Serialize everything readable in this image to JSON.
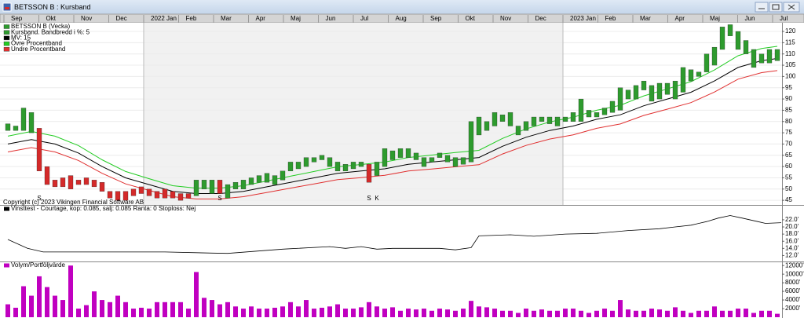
{
  "window_title": "BETSSON B : Kursband",
  "chart_data": [
    {
      "type": "kursband",
      "months": [
        "Sep",
        "Okt",
        "Nov",
        "Dec",
        "2022 Jan",
        "Feb",
        "Mar",
        "Apr",
        "Maj",
        "Jun",
        "Jul",
        "Aug",
        "Sep",
        "Okt",
        "Nov",
        "Dec",
        "2023 Jan",
        "Feb",
        "Mar",
        "Apr",
        "Maj",
        "Jun",
        "Jul"
      ],
      "legend": [
        {
          "name": "BETSSON B (Vecka)",
          "color": "#2e9b2e"
        },
        {
          "name": "Kursband. Bandbredd i %: 5",
          "color": "#2e9b2e"
        }
      ],
      "bars": {
        "low": [
          76,
          76,
          76,
          75,
          58,
          52,
          51,
          51,
          50,
          52,
          52,
          51,
          49,
          46,
          45,
          45,
          47,
          48,
          47,
          46,
          46,
          46,
          45,
          46,
          47,
          50,
          48,
          48,
          46,
          50,
          50,
          52,
          53,
          53,
          52,
          54,
          58,
          59,
          60,
          62,
          63,
          60,
          58,
          58,
          59,
          60,
          53,
          56,
          60,
          63,
          64,
          64,
          63,
          60,
          62,
          64,
          62,
          60,
          61,
          62,
          74,
          76,
          78,
          80,
          78,
          74,
          76,
          78,
          80,
          79,
          78,
          80,
          80,
          80,
          82,
          82,
          83,
          84,
          85,
          90,
          90,
          94,
          89,
          90,
          92,
          90,
          93,
          98,
          100,
          102,
          105,
          112,
          118,
          112,
          110,
          104,
          106,
          106,
          107
        ],
        "high": [
          79,
          78,
          86,
          84,
          77,
          60,
          54,
          55,
          56,
          54,
          55,
          54,
          53,
          49,
          49,
          49,
          50,
          51,
          50,
          49,
          50,
          49,
          48,
          48,
          54,
          54,
          54,
          54,
          52,
          53,
          54,
          55,
          56,
          57,
          56,
          58,
          62,
          62,
          64,
          64,
          65,
          64,
          62,
          61,
          62,
          62,
          61,
          62,
          68,
          67,
          68,
          68,
          66,
          64,
          64,
          66,
          65,
          64,
          64,
          80,
          82,
          80,
          84,
          83,
          84,
          78,
          80,
          82,
          82,
          82,
          82,
          82,
          84,
          90,
          85,
          84,
          86,
          89,
          95,
          94,
          96,
          98,
          96,
          97,
          97,
          98,
          104,
          103,
          102,
          110,
          113,
          122,
          123,
          120,
          116,
          112,
          110,
          112,
          112
        ],
        "colors": [
          "#2e9b2e",
          "#2e9b2e",
          "#2e9b2e",
          "#2e9b2e",
          "#d42a2a",
          "#d42a2a",
          "#d42a2a",
          "#d42a2a",
          "#d42a2a",
          "#d42a2a",
          "#d42a2a",
          "#d42a2a",
          "#d42a2a",
          "#d42a2a",
          "#d42a2a",
          "#d42a2a",
          "#d42a2a",
          "#d42a2a",
          "#d42a2a",
          "#d42a2a",
          "#d42a2a",
          "#d42a2a",
          "#d42a2a",
          "#d42a2a",
          "#2e9b2e",
          "#2e9b2e",
          "#2e9b2e",
          "#d42a2a",
          "#2e9b2e",
          "#2e9b2e",
          "#2e9b2e",
          "#2e9b2e",
          "#2e9b2e",
          "#2e9b2e",
          "#2e9b2e",
          "#2e9b2e",
          "#2e9b2e",
          "#2e9b2e",
          "#2e9b2e",
          "#2e9b2e",
          "#2e9b2e",
          "#2e9b2e",
          "#2e9b2e",
          "#2e9b2e",
          "#2e9b2e",
          "#2e9b2e",
          "#d42a2a",
          "#2e9b2e",
          "#2e9b2e",
          "#2e9b2e",
          "#2e9b2e",
          "#2e9b2e",
          "#2e9b2e",
          "#2e9b2e",
          "#2e9b2e",
          "#2e9b2e",
          "#2e9b2e",
          "#2e9b2e",
          "#2e9b2e",
          "#2e9b2e",
          "#2e9b2e",
          "#2e9b2e",
          "#2e9b2e",
          "#2e9b2e",
          "#2e9b2e",
          "#2e9b2e",
          "#2e9b2e",
          "#2e9b2e",
          "#2e9b2e",
          "#2e9b2e",
          "#2e9b2e",
          "#2e9b2e",
          "#2e9b2e",
          "#2e9b2e",
          "#2e9b2e",
          "#2e9b2e",
          "#2e9b2e",
          "#2e9b2e",
          "#2e9b2e",
          "#2e9b2e",
          "#2e9b2e",
          "#2e9b2e",
          "#2e9b2e",
          "#2e9b2e",
          "#2e9b2e",
          "#2e9b2e",
          "#2e9b2e",
          "#2e9b2e",
          "#2e9b2e",
          "#2e9b2e",
          "#2e9b2e",
          "#2e9b2e",
          "#2e9b2e",
          "#2e9b2e",
          "#2e9b2e",
          "#2e9b2e",
          "#2e9b2e",
          "#2e9b2e",
          "#2e9b2e"
        ]
      },
      "lines": [
        {
          "name": "MV: 15",
          "color": "#000000",
          "x": [
            0,
            3,
            6,
            9,
            12,
            15,
            18,
            21,
            24,
            27,
            30,
            33,
            36,
            39,
            42,
            45,
            48,
            51,
            54,
            57,
            60,
            63,
            66,
            69,
            72,
            75,
            78,
            81,
            84,
            87,
            90,
            93,
            96,
            98
          ],
          "values": [
            70,
            72,
            70,
            66,
            60,
            55,
            52,
            49,
            48,
            48,
            49,
            51,
            53,
            55,
            57,
            58,
            59,
            61,
            62,
            63,
            64,
            69,
            73,
            76,
            78,
            81,
            83,
            87,
            90,
            93,
            98,
            104,
            107,
            108
          ]
        },
        {
          "name": "Övre Procentband",
          "color": "#22cc22",
          "x": [
            0,
            3,
            6,
            9,
            12,
            15,
            18,
            21,
            24,
            27,
            30,
            33,
            36,
            39,
            42,
            45,
            48,
            51,
            54,
            57,
            60,
            63,
            66,
            69,
            72,
            75,
            78,
            81,
            84,
            87,
            90,
            93,
            96,
            98
          ],
          "values": [
            73.5,
            75.6,
            73.5,
            69.3,
            63,
            57.8,
            54.6,
            51.5,
            50.4,
            50.4,
            51.5,
            53.6,
            55.7,
            57.8,
            59.9,
            60.9,
            62,
            64,
            65.1,
            66.2,
            67.2,
            72.5,
            76.7,
            79.8,
            81.9,
            85,
            87.2,
            91.4,
            94.5,
            97.7,
            102.9,
            109.2,
            112.4,
            113.4
          ]
        },
        {
          "name": "Undre Procentband",
          "color": "#e03030",
          "x": [
            0,
            3,
            6,
            9,
            12,
            15,
            18,
            21,
            24,
            27,
            30,
            33,
            36,
            39,
            42,
            45,
            48,
            51,
            54,
            57,
            60,
            63,
            66,
            69,
            72,
            75,
            78,
            81,
            84,
            87,
            90,
            93,
            96,
            98
          ],
          "values": [
            66.5,
            68.4,
            66.5,
            62.7,
            57,
            52.3,
            49.4,
            46.6,
            45.6,
            45.6,
            46.6,
            48.5,
            50.4,
            52.3,
            54.2,
            55.1,
            56.1,
            58,
            58.9,
            59.9,
            60.8,
            65.6,
            69.4,
            72.2,
            74.1,
            77,
            78.9,
            82.7,
            85.5,
            88.4,
            93.1,
            98.8,
            101.7,
            102.6
          ]
        }
      ],
      "annotations": [
        {
          "text": "S",
          "week": 4,
          "color": "#d42a2a"
        },
        {
          "text": "S",
          "week": 27,
          "color": "#d42a2a"
        },
        {
          "text": "S",
          "week": 46,
          "color": "#d42a2a"
        },
        {
          "text": "K",
          "week": 47,
          "color": "#2e9b2e"
        }
      ],
      "copyright": "Copyright (c) 2023 Vikingen Financial Software AB",
      "ylim": [
        44,
        123.5
      ],
      "yticks": [
        45,
        50,
        55,
        60,
        65,
        70,
        75,
        80,
        85,
        90,
        95,
        100,
        105,
        110,
        115,
        120
      ],
      "grid": true
    },
    {
      "type": "line",
      "title": "Vinsttest - Courtage, kop: 0.085, salj: 0.085  Ranta: 0  Stoploss: Nej",
      "color": "#000000",
      "x": [
        0,
        2.5,
        4.5,
        10,
        20,
        26,
        28,
        35,
        41,
        43,
        45,
        47,
        49,
        55,
        57,
        59,
        60,
        64,
        67,
        71,
        75,
        79,
        83,
        85,
        87,
        89,
        90.5,
        92,
        93.5,
        95.5,
        96.5,
        98.5
      ],
      "values": [
        16.5,
        14,
        13,
        13,
        13,
        12.7,
        12.6,
        13.8,
        14.5,
        14,
        14.5,
        13.8,
        14,
        14,
        13.6,
        14.2,
        17.5,
        17.8,
        17.4,
        18,
        18.2,
        19,
        19.5,
        20,
        20.5,
        21.5,
        22.5,
        23.2,
        22.5,
        21.5,
        21,
        21.2
      ],
      "ylim": [
        11,
        25.5
      ],
      "yticks": [
        {
          "value": 12,
          "label": "12.0'"
        },
        {
          "value": 14,
          "label": "14.0'"
        },
        {
          "value": 16,
          "label": "16.0'"
        },
        {
          "value": 18,
          "label": "18.0'"
        },
        {
          "value": 20,
          "label": "20.0'"
        },
        {
          "value": 22,
          "label": "22.0'"
        }
      ]
    },
    {
      "type": "bar",
      "title": "Volym/Portföljvärde",
      "color": "#c000c0",
      "values": [
        3000,
        2200,
        7200,
        5000,
        9500,
        7000,
        5000,
        4000,
        12000,
        2000,
        2800,
        6000,
        4000,
        3500,
        5000,
        3500,
        2000,
        2200,
        2000,
        3500,
        3500,
        3500,
        3500,
        2000,
        10500,
        4500,
        4000,
        3000,
        3500,
        2500,
        2000,
        2500,
        2000,
        2000,
        2200,
        2500,
        3500,
        2500,
        4000,
        2000,
        2200,
        2500,
        3000,
        2000,
        2000,
        2300,
        3500,
        2500,
        2000,
        2300,
        1500,
        2000,
        1800,
        2000,
        1500,
        2000,
        1800,
        1500,
        2000,
        3800,
        2500,
        2300,
        2000,
        1500,
        1500,
        1000,
        2000,
        1500,
        1800,
        1500,
        1500,
        2000,
        2000,
        1500,
        1000,
        1500,
        2000,
        1500,
        4000,
        1800,
        1500,
        1500,
        2000,
        1800,
        1500,
        2300,
        1500,
        1000,
        1500,
        1500,
        2500,
        1500,
        1500,
        2000,
        2000,
        1000,
        1500,
        1500,
        800
      ],
      "ylim": [
        0,
        12400
      ],
      "yticks": [
        {
          "value": 2000,
          "label": "2000'"
        },
        {
          "value": 4000,
          "label": "4000'"
        },
        {
          "value": 6000,
          "label": "6000'"
        },
        {
          "value": 8000,
          "label": "8000'"
        },
        {
          "value": 10000,
          "label": "10000'"
        },
        {
          "value": 12000,
          "label": "12000'"
        }
      ]
    }
  ]
}
